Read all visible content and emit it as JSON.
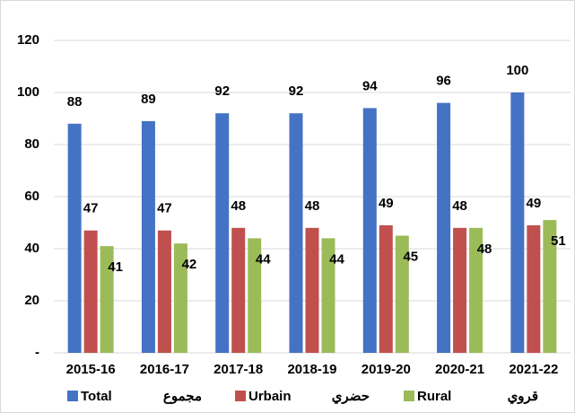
{
  "chart_data": {
    "type": "bar",
    "categories": [
      "2015-16",
      "2016-17",
      "2017-18",
      "2018-19",
      "2019-20",
      "2020-21",
      "2021-22"
    ],
    "series": [
      {
        "name": "Total",
        "name_ar": "مجموع",
        "color": "#4472c4",
        "values": [
          88,
          89,
          92,
          92,
          94,
          96,
          100
        ]
      },
      {
        "name": "Urbain",
        "name_ar": "حضري",
        "color": "#c0504d",
        "values": [
          47,
          47,
          48,
          48,
          49,
          48,
          49
        ]
      },
      {
        "name": "Rural",
        "name_ar": "قروي",
        "color": "#9bbb59",
        "values": [
          41,
          42,
          44,
          44,
          45,
          48,
          51
        ]
      }
    ],
    "ylim": [
      0,
      120
    ],
    "yticks": [
      {
        "value": 0,
        "label": "-"
      },
      20,
      40,
      60,
      80,
      100,
      120
    ],
    "grid": true,
    "legend": "bottom"
  }
}
